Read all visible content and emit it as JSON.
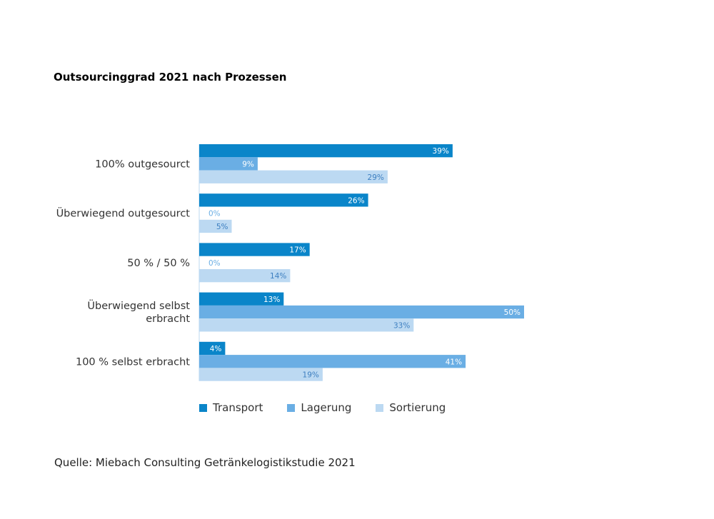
{
  "title": "Outsourcinggrad 2021 nach Prozessen",
  "source": "Quelle: Miebach Consulting Getränkelogistikstudie 2021",
  "chart_data": {
    "type": "bar",
    "orientation": "horizontal",
    "categories": [
      [
        "100% outgesourct"
      ],
      [
        "Überwiegend outgesourct"
      ],
      [
        "50 % / 50 %"
      ],
      [
        "Überwiegend selbst",
        "erbracht"
      ],
      [
        "100 % selbst erbracht"
      ]
    ],
    "series": [
      {
        "name": "Transport",
        "color": "#0a85c9",
        "values": [
          39,
          26,
          17,
          13,
          4
        ],
        "labels": [
          "39%",
          "26%",
          "17%",
          "13%",
          "4%"
        ],
        "label_color": "#ffffff"
      },
      {
        "name": "Lagerung",
        "color": "#6aaee4",
        "values": [
          9,
          0,
          0,
          50,
          41
        ],
        "labels": [
          "9%",
          "0%",
          "0%",
          "50%",
          "41%"
        ],
        "label_color": "#ffffff",
        "zero_label_color": "#6aaee4"
      },
      {
        "name": "Sortierung",
        "color": "#bcd9f2",
        "values": [
          29,
          5,
          14,
          33,
          19
        ],
        "labels": [
          "29%",
          "5%",
          "14%",
          "33%",
          "19%"
        ],
        "label_color": "#3d7fc0"
      }
    ],
    "xlim": [
      0,
      50
    ],
    "grid": false,
    "legend_position": "bottom-left"
  }
}
